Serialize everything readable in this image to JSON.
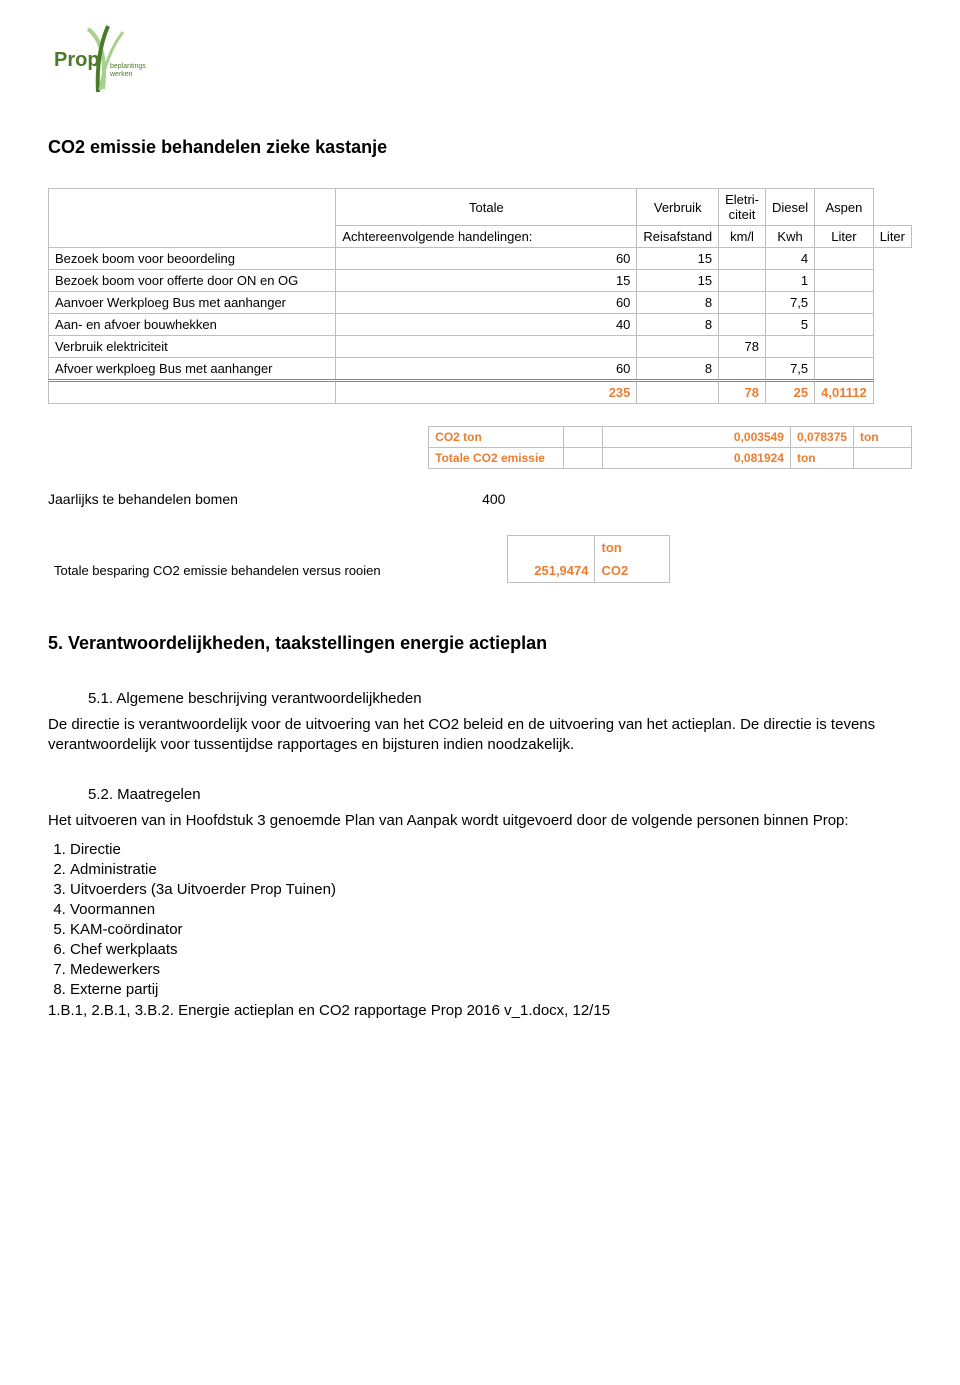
{
  "logo": {
    "wordmark": "Prop",
    "tagline1": "beplantings",
    "tagline2": "werken",
    "green_dark": "#4a7a2a",
    "green_light": "#a8d08d"
  },
  "title": "CO2 emissie behandelen zieke kastanje",
  "table1": {
    "headers": {
      "c1": "Achtereenvolgende handelingen:",
      "c2_top": "Totale",
      "c2_bot": "Reisafstand",
      "c3_top": "Verbruik",
      "c3_bot": "km/l",
      "c4_top": "Eletri-citeit",
      "c4_bot": "Kwh",
      "c5_top": "Diesel",
      "c5_bot": "Liter",
      "c6_top": "Aspen",
      "c6_bot": "Liter"
    },
    "rows": [
      {
        "label": "Bezoek boom voor beoordeling",
        "c2": "60",
        "c3": "15",
        "c4": "",
        "c5": "4",
        "c6": ""
      },
      {
        "label": "Bezoek boom voor offerte door ON en OG",
        "c2": "15",
        "c3": "15",
        "c4": "",
        "c5": "1",
        "c6": ""
      },
      {
        "label": "Aanvoer Werkploeg Bus met aanhanger",
        "c2": "60",
        "c3": "8",
        "c4": "",
        "c5": "7,5",
        "c6": ""
      },
      {
        "label": "Aan- en afvoer bouwhekken",
        "c2": "40",
        "c3": "8",
        "c4": "",
        "c5": "5",
        "c6": ""
      },
      {
        "label": "Verbruik elektriciteit",
        "c2": "",
        "c3": "",
        "c4": "78",
        "c5": "",
        "c6": ""
      },
      {
        "label": "Afvoer werkploeg Bus met aanhanger",
        "c2": "60",
        "c3": "8",
        "c4": "",
        "c5": "7,5",
        "c6": ""
      }
    ],
    "totals": {
      "c2": "235",
      "c3": "",
      "c4": "78",
      "c5": "25",
      "c6": "4,01112"
    },
    "colors": {
      "totals_text": "#ed7d31"
    }
  },
  "co2box": {
    "r1": {
      "label": "CO2 ton",
      "v1": "",
      "v2": "0,003549",
      "v3": "0,078375",
      "unit": "ton"
    },
    "r2": {
      "label": "Totale CO2 emissie",
      "v1": "",
      "v2": "0,081924",
      "v3": "ton",
      "unit": ""
    }
  },
  "jaarlijks": {
    "label": "Jaarlijks te behandelen bomen",
    "value": "400"
  },
  "besparing": {
    "label": "Totale besparing CO2 emissie behandelen versus rooien",
    "value": "251,9474",
    "unit": "ton CO2"
  },
  "section5": {
    "heading": "5. Verantwoordelijkheden, taakstellingen energie actieplan",
    "sub51": "5.1. Algemene beschrijving verantwoordelijkheden",
    "para51": "De directie is verantwoordelijk voor de uitvoering van het CO2 beleid en de uitvoering van het actieplan. De directie is tevens verantwoordelijk voor tussentijdse rapportages en bijsturen indien noodzakelijk.",
    "sub52": "5.2. Maatregelen",
    "para52": "Het uitvoeren van in Hoofdstuk 3 genoemde Plan van Aanpak wordt uitgevoerd door de volgende personen binnen Prop:",
    "list": [
      "Directie",
      "Administratie",
      "Uitvoerders (3a Uitvoerder Prop Tuinen)",
      "Voormannen",
      "KAM-coördinator",
      "Chef werkplaats",
      "Medewerkers",
      "Externe partij"
    ]
  },
  "footer": "1.B.1, 2.B.1, 3.B.2. Energie actieplan en CO2 rapportage Prop 2016 v_1.docx, 12/15"
}
